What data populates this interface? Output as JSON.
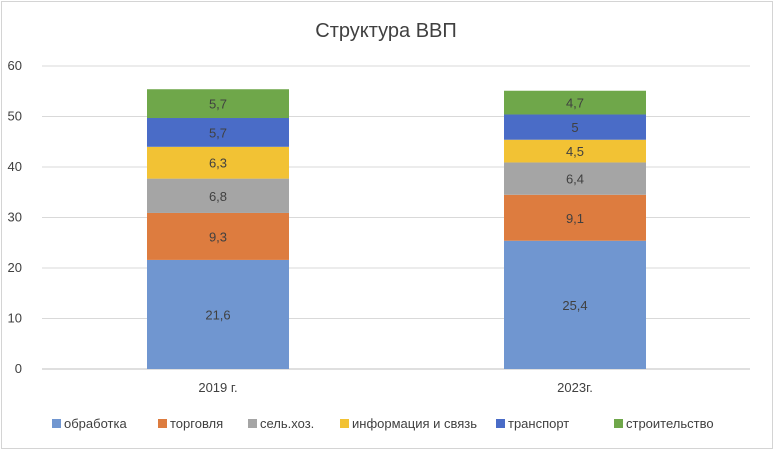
{
  "chart_data": {
    "type": "bar",
    "stacked": true,
    "title": "Структура ВВП",
    "categories": [
      "2019 г.",
      "2023г."
    ],
    "ylim": [
      0,
      60
    ],
    "yticks": [
      0,
      10,
      20,
      30,
      40,
      50,
      60
    ],
    "ytick_labels": [
      "0",
      "10",
      "20",
      "30",
      "40",
      "50",
      "60"
    ],
    "grid": true,
    "legend_position": "bottom",
    "series": [
      {
        "name": "обработка",
        "color": "#7096d0",
        "values": [
          21.6,
          25.4
        ],
        "labels": [
          "21,6",
          "25,4"
        ]
      },
      {
        "name": "торговля",
        "color": "#dd7c3f",
        "values": [
          9.3,
          9.1
        ],
        "labels": [
          "9,3",
          "9,1"
        ]
      },
      {
        "name": "сель.хоз.",
        "color": "#a5a5a5",
        "values": [
          6.8,
          6.4
        ],
        "labels": [
          "6,8",
          "6,4"
        ]
      },
      {
        "name": "информация и связь",
        "color": "#f2c234",
        "values": [
          6.3,
          4.5
        ],
        "labels": [
          "6,3",
          "4,5"
        ]
      },
      {
        "name": "транспорт",
        "color": "#4a6cc7",
        "values": [
          5.7,
          5
        ],
        "labels": [
          "5,7",
          "5"
        ]
      },
      {
        "name": "строительство",
        "color": "#6fa74a",
        "values": [
          5.7,
          4.7
        ],
        "labels": [
          "5,7",
          "4,7"
        ]
      }
    ]
  }
}
